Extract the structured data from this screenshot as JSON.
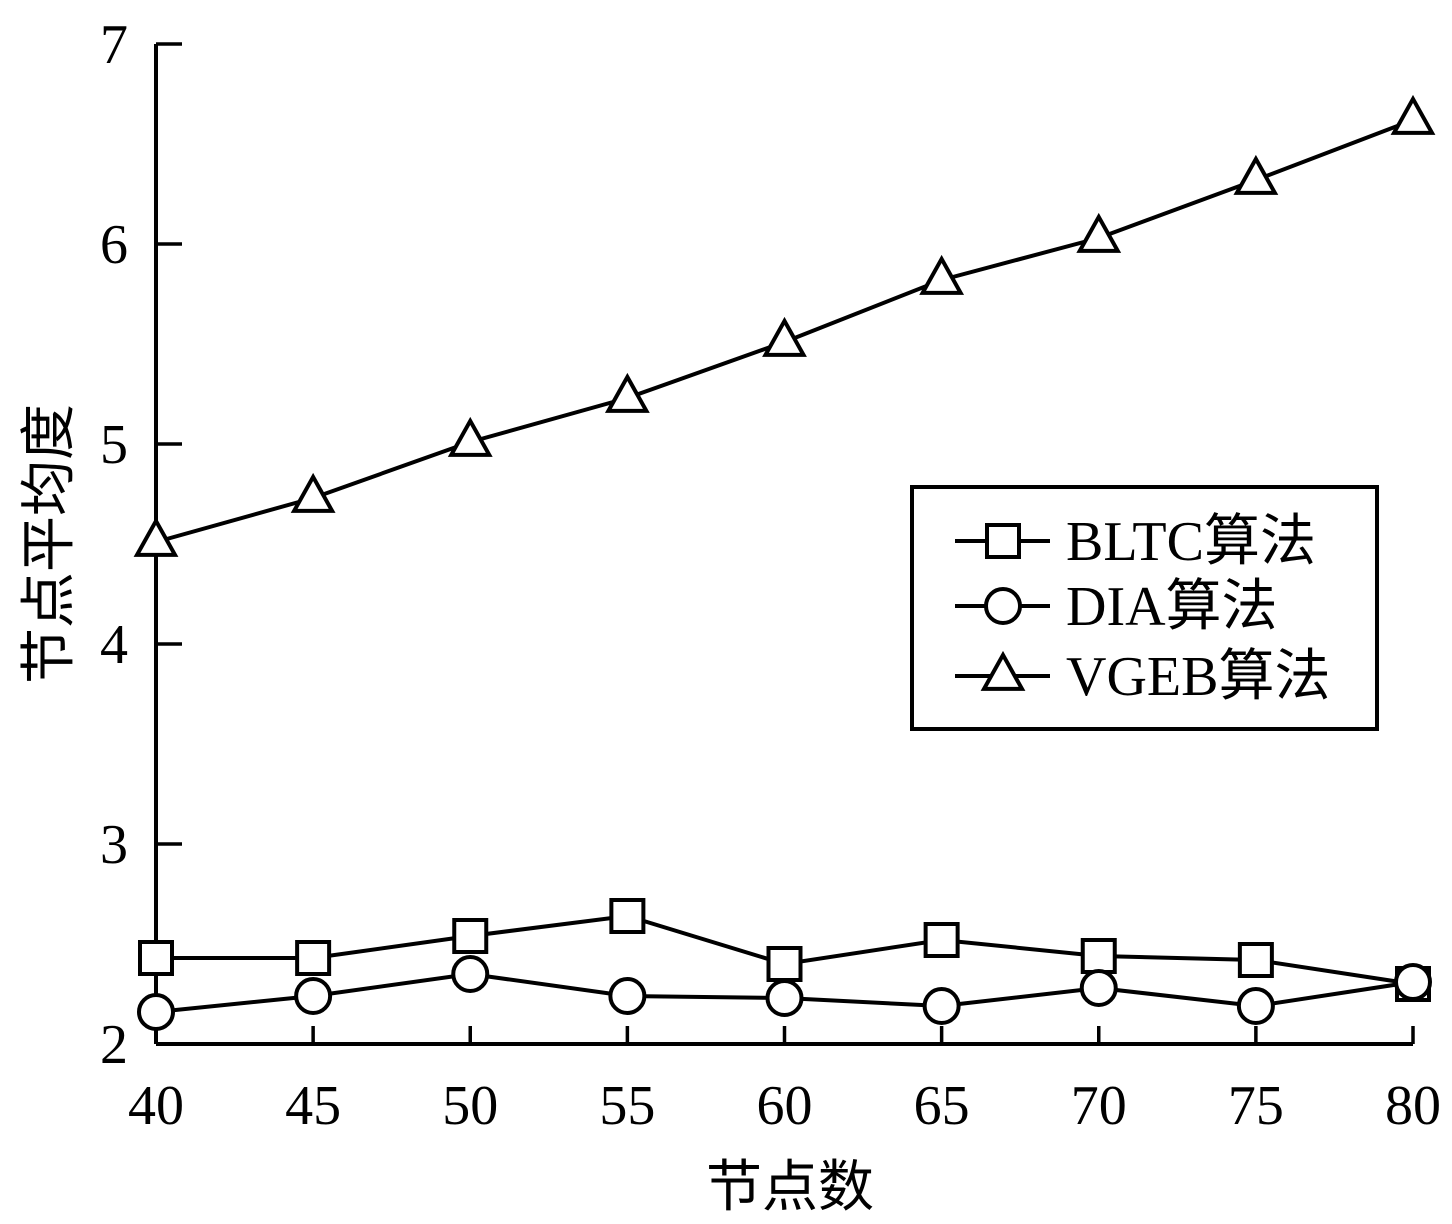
{
  "chart_data": {
    "type": "line",
    "xlabel": "节点数",
    "ylabel": "节点平均度",
    "xlim": [
      40,
      80
    ],
    "ylim": [
      2,
      7
    ],
    "x": [
      40,
      45,
      50,
      55,
      60,
      65,
      70,
      75,
      80
    ],
    "xticks": [
      "40",
      "45",
      "50",
      "55",
      "60",
      "65",
      "70",
      "75",
      "80"
    ],
    "yticks": [
      "2",
      "3",
      "4",
      "5",
      "6",
      "7"
    ],
    "grid": false,
    "legend_position": "right",
    "series": [
      {
        "name": "BLTC算法",
        "marker": "square",
        "values": [
          2.43,
          2.43,
          2.54,
          2.64,
          2.4,
          2.52,
          2.44,
          2.42,
          2.3
        ]
      },
      {
        "name": "DIA算法",
        "marker": "circle",
        "values": [
          2.16,
          2.24,
          2.35,
          2.24,
          2.23,
          2.19,
          2.28,
          2.19,
          2.31
        ]
      },
      {
        "name": "VGEB算法",
        "marker": "triangle",
        "values": [
          4.51,
          4.73,
          5.01,
          5.23,
          5.51,
          5.82,
          6.03,
          6.32,
          6.62
        ]
      }
    ]
  }
}
